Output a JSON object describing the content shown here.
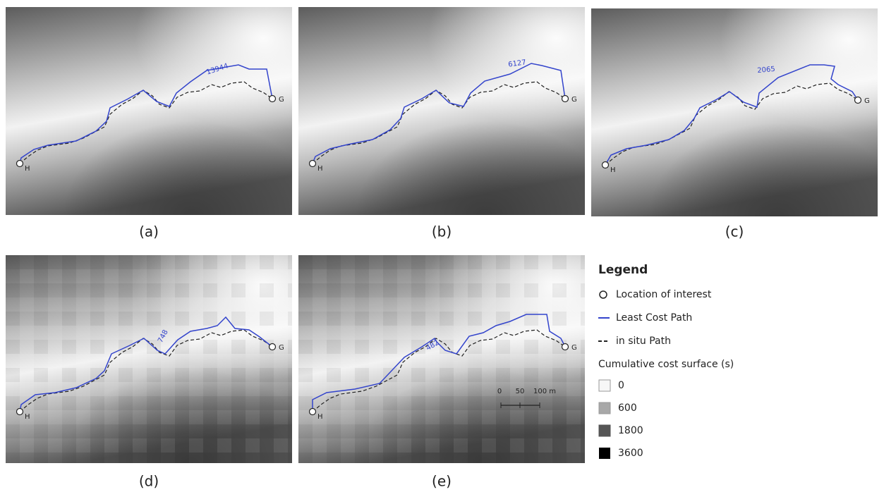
{
  "panels": [
    {
      "caption": "(a)",
      "path_label": "13944",
      "start": "H",
      "end": "G"
    },
    {
      "caption": "(b)",
      "path_label": "6127",
      "start": "H",
      "end": "G"
    },
    {
      "caption": "(c)",
      "path_label": "2065",
      "start": "H",
      "end": "G"
    },
    {
      "caption": "(d)",
      "path_label": "748",
      "start": "H",
      "end": "G"
    },
    {
      "caption": "(e)",
      "path_label": "482",
      "start": "H",
      "end": "G"
    }
  ],
  "scale_bar": {
    "labels": [
      "0",
      "50",
      "100 m"
    ]
  },
  "legend": {
    "title": "Legend",
    "items": [
      "Location of interest",
      "Least Cost Path",
      "in situ Path"
    ],
    "surface_title": "Cumulative cost surface (s)",
    "surface_items": [
      0,
      600,
      1800,
      3600
    ]
  }
}
